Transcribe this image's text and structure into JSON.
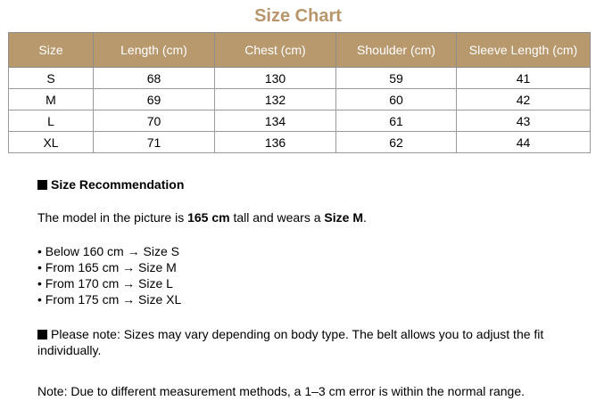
{
  "title": "Size Chart",
  "colors": {
    "accent": "#b8996e",
    "title": "#b8956a"
  },
  "table": {
    "headers": [
      "Size",
      "Length (cm)",
      "Chest (cm)",
      "Shoulder (cm)",
      "Sleeve Length (cm)"
    ],
    "rows": [
      [
        "S",
        "68",
        "130",
        "59",
        "41"
      ],
      [
        "M",
        "69",
        "132",
        "60",
        "42"
      ],
      [
        "L",
        "70",
        "134",
        "61",
        "43"
      ],
      [
        "XL",
        "71",
        "136",
        "62",
        "44"
      ]
    ]
  },
  "recommendation": {
    "heading": "Size Recommendation",
    "model_pre": "The model in the picture is ",
    "model_height": "165 cm",
    "model_mid": " tall and wears a ",
    "model_size": "Size M",
    "model_post": ".",
    "bullets": [
      "• Below 160 cm → Size S",
      "• From 165 cm → Size M",
      "• From 170 cm → Size L",
      "• From 175 cm → Size XL"
    ],
    "please_note": "Please note: Sizes may vary depending on body type. The belt allows you to adjust the fit individually.",
    "note": "Note: Due to different measurement methods, a 1–3 cm error is within the normal range."
  }
}
